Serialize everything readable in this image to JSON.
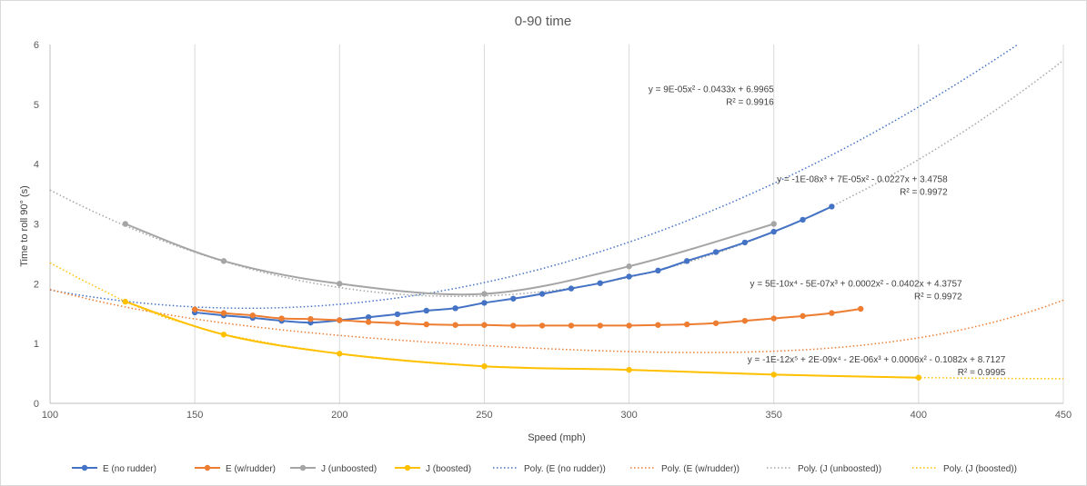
{
  "chart_data": {
    "type": "line",
    "title": "0-90 time",
    "xlabel": "Speed (mph)",
    "ylabel": "Time to roll 90° (s)",
    "xlim": [
      100,
      450
    ],
    "ylim": [
      0,
      6
    ],
    "x_ticks": [
      "100",
      "150",
      "200",
      "250",
      "300",
      "350",
      "400",
      "450"
    ],
    "y_ticks": [
      "0",
      "1",
      "2",
      "3",
      "4",
      "5",
      "6"
    ],
    "grid": "vertical",
    "legend_position": "bottom",
    "series": [
      {
        "name": "E (no rudder)",
        "color": "#4472c4",
        "points": [
          [
            150,
            1.52
          ],
          [
            160,
            1.47
          ],
          [
            170,
            1.43
          ],
          [
            180,
            1.38
          ],
          [
            190,
            1.35
          ],
          [
            200,
            1.39
          ],
          [
            210,
            1.44
          ],
          [
            220,
            1.49
          ],
          [
            230,
            1.55
          ],
          [
            240,
            1.59
          ],
          [
            250,
            1.68
          ],
          [
            260,
            1.75
          ],
          [
            270,
            1.83
          ],
          [
            280,
            1.92
          ],
          [
            290,
            2.01
          ],
          [
            300,
            2.12
          ],
          [
            310,
            2.22
          ],
          [
            320,
            2.38
          ],
          [
            330,
            2.53
          ],
          [
            340,
            2.69
          ],
          [
            350,
            2.87
          ],
          [
            360,
            3.07
          ],
          [
            370,
            3.29
          ]
        ]
      },
      {
        "name": "E (w/rudder)",
        "color": "#ed7d31",
        "points": [
          [
            150,
            1.57
          ],
          [
            160,
            1.51
          ],
          [
            170,
            1.47
          ],
          [
            180,
            1.42
          ],
          [
            190,
            1.41
          ],
          [
            200,
            1.39
          ],
          [
            210,
            1.36
          ],
          [
            220,
            1.34
          ],
          [
            230,
            1.32
          ],
          [
            240,
            1.31
          ],
          [
            250,
            1.31
          ],
          [
            260,
            1.3
          ],
          [
            270,
            1.3
          ],
          [
            280,
            1.3
          ],
          [
            290,
            1.3
          ],
          [
            300,
            1.3
          ],
          [
            310,
            1.31
          ],
          [
            320,
            1.32
          ],
          [
            330,
            1.34
          ],
          [
            340,
            1.38
          ],
          [
            350,
            1.42
          ],
          [
            360,
            1.46
          ],
          [
            370,
            1.51
          ],
          [
            380,
            1.58
          ]
        ]
      },
      {
        "name": "J (unboosted)",
        "color": "#a5a5a5",
        "points": [
          [
            126,
            3.0
          ],
          [
            160,
            2.38
          ],
          [
            200,
            2.0
          ],
          [
            250,
            1.83
          ],
          [
            300,
            2.29
          ],
          [
            350,
            3.0
          ]
        ]
      },
      {
        "name": "J (boosted)",
        "color": "#ffc000",
        "points": [
          [
            126,
            1.7
          ],
          [
            160,
            1.15
          ],
          [
            200,
            0.83
          ],
          [
            250,
            0.62
          ],
          [
            300,
            0.56
          ],
          [
            350,
            0.48
          ],
          [
            400,
            0.43
          ]
        ]
      }
    ],
    "trendlines": [
      {
        "name": "Poly. (E (no rudder))",
        "color": "#4472c4",
        "type": "polynomial",
        "order": 3,
        "coefficients": [
          3.4758,
          -0.0227,
          7e-05,
          -1e-08
        ],
        "range": [
          100,
          450
        ]
      },
      {
        "name": "Poly. (E (w/rudder))",
        "color": "#ed7d31",
        "type": "polynomial",
        "order": 4,
        "coefficients": [
          4.3757,
          -0.0402,
          0.0002,
          -5e-07,
          5e-10
        ],
        "range": [
          100,
          450
        ]
      },
      {
        "name": "Poly. (J (unboosted))",
        "color": "#a5a5a5",
        "type": "polynomial",
        "order": 2,
        "coefficients": [
          6.9965,
          -0.0433,
          9e-05
        ],
        "range": [
          100,
          450
        ]
      },
      {
        "name": "Poly. (J (boosted))",
        "color": "#ffc000",
        "type": "polynomial",
        "order": 5,
        "range": [
          100,
          450
        ],
        "points": [
          [
            100,
            2.35
          ],
          [
            110,
            2.09
          ],
          [
            126,
            1.7
          ],
          [
            140,
            1.43
          ],
          [
            160,
            1.15
          ],
          [
            180,
            0.97
          ],
          [
            200,
            0.83
          ],
          [
            225,
            0.71
          ],
          [
            250,
            0.62
          ],
          [
            275,
            0.58
          ],
          [
            300,
            0.56
          ],
          [
            325,
            0.52
          ],
          [
            350,
            0.48
          ],
          [
            375,
            0.45
          ],
          [
            400,
            0.43
          ],
          [
            425,
            0.42
          ],
          [
            450,
            0.41
          ]
        ]
      }
    ],
    "annotations": [
      {
        "lines": [
          "y = 9E-05x² - 0.0433x + 6.9965",
          "R² = 0.9916"
        ],
        "x": 350,
        "y": 5.2
      },
      {
        "lines": [
          "y = -1E-08x³ + 7E-05x² - 0.0227x + 3.4758",
          "R² = 0.9972"
        ],
        "x": 410,
        "y": 3.7
      },
      {
        "lines": [
          "y = 5E-10x⁴ - 5E-07x³ + 0.0002x² - 0.0402x + 4.3757",
          "R² = 0.9972"
        ],
        "x": 415,
        "y": 1.95
      },
      {
        "lines": [
          "y = -1E-12x⁵ + 2E-09x⁴ - 2E-06x³ + 0.0006x² - 0.1082x + 8.7127",
          "R² = 0.9995"
        ],
        "x": 430,
        "y": 0.68
      }
    ]
  }
}
